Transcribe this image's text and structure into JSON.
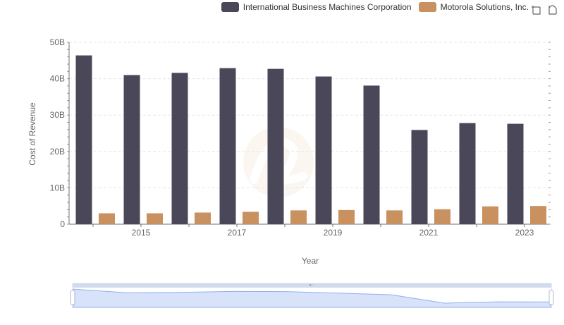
{
  "legend": {
    "items": [
      {
        "label": "International Business Machines Corporation",
        "color": "#4a4858"
      },
      {
        "label": "Motorola Solutions, Inc.",
        "color": "#c8915f"
      }
    ]
  },
  "toolbox": {
    "icons": [
      "zoom-icon",
      "restore-icon"
    ]
  },
  "chart_data": {
    "type": "bar",
    "xlabel": "Year",
    "ylabel": "Cost of Revenue",
    "ylim": [
      0,
      50000000000
    ],
    "yticks": [
      "0",
      "10B",
      "20B",
      "30B",
      "40B",
      "50B"
    ],
    "x": [
      2014,
      2015,
      2016,
      2017,
      2018,
      2019,
      2020,
      2021,
      2022,
      2023
    ],
    "xtick_labels": [
      "2015",
      "2017",
      "2019",
      "2021",
      "2023"
    ],
    "series": [
      {
        "name": "International Business Machines Corporation",
        "color": "#4a4858",
        "values": [
          46400000000,
          41000000000,
          41600000000,
          42900000000,
          42700000000,
          40600000000,
          38100000000,
          25900000000,
          27800000000,
          27600000000
        ]
      },
      {
        "name": "Motorola Solutions, Inc.",
        "color": "#c8915f",
        "values": [
          3000000000,
          3000000000,
          3200000000,
          3400000000,
          3800000000,
          3900000000,
          3800000000,
          4100000000,
          4900000000,
          5000000000
        ]
      }
    ],
    "grid": true,
    "legend_position": "top-right"
  }
}
